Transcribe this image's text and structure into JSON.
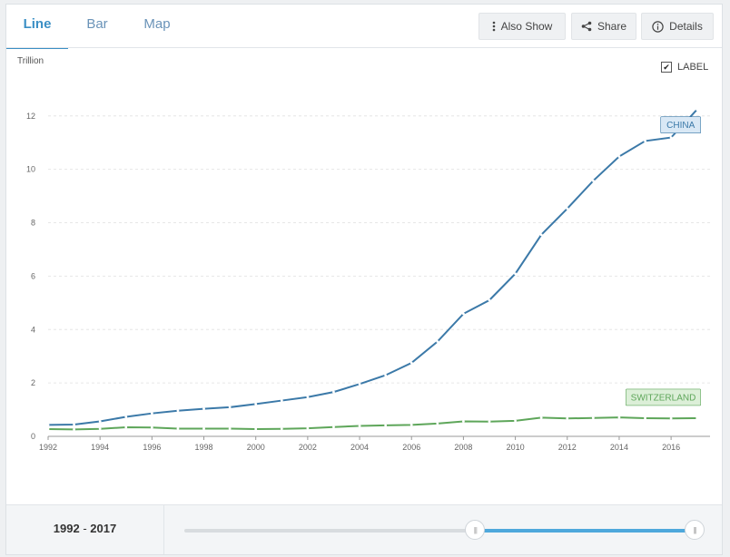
{
  "tabs": [
    {
      "label": "Line",
      "active": true
    },
    {
      "label": "Bar",
      "active": false
    },
    {
      "label": "Map",
      "active": false
    }
  ],
  "toolbar": {
    "also_show": "Also Show",
    "share": "Share",
    "details": "Details"
  },
  "label_toggle": {
    "label": "LABEL",
    "checked": true
  },
  "range": {
    "start": "1992",
    "separator": "-",
    "end": "2017"
  },
  "slider": {
    "start_fraction": 0.57,
    "end_fraction": 1.0
  },
  "chart_data": {
    "type": "line",
    "ylabel": "Trillion",
    "ylim": [
      0,
      12.4
    ],
    "xlim": [
      1992,
      2017.5
    ],
    "yticks": [
      0,
      2,
      4,
      6,
      8,
      10,
      12
    ],
    "xticks": [
      1992,
      1994,
      1996,
      1998,
      2000,
      2002,
      2004,
      2006,
      2008,
      2010,
      2012,
      2014,
      2016
    ],
    "grid": true,
    "x": [
      1992,
      1993,
      1994,
      1995,
      1996,
      1997,
      1998,
      1999,
      2000,
      2001,
      2002,
      2003,
      2004,
      2005,
      2006,
      2007,
      2008,
      2009,
      2010,
      2011,
      2012,
      2013,
      2014,
      2015,
      2016,
      2017
    ],
    "series": [
      {
        "name": "CHINA",
        "color": "#3b79a8",
        "label_bg": "#d9e8f5",
        "values": [
          0.43,
          0.44,
          0.56,
          0.73,
          0.86,
          0.96,
          1.03,
          1.09,
          1.21,
          1.34,
          1.47,
          1.66,
          1.96,
          2.29,
          2.75,
          3.55,
          4.59,
          5.1,
          6.09,
          7.55,
          8.53,
          9.57,
          10.48,
          11.06,
          11.19,
          12.24
        ]
      },
      {
        "name": "SWITZERLAND",
        "color": "#5ea65a",
        "label_bg": "#dcefd8",
        "values": [
          0.27,
          0.26,
          0.28,
          0.34,
          0.33,
          0.29,
          0.29,
          0.29,
          0.27,
          0.28,
          0.3,
          0.35,
          0.39,
          0.41,
          0.43,
          0.48,
          0.56,
          0.55,
          0.58,
          0.7,
          0.67,
          0.69,
          0.71,
          0.68,
          0.67,
          0.68
        ]
      }
    ]
  }
}
